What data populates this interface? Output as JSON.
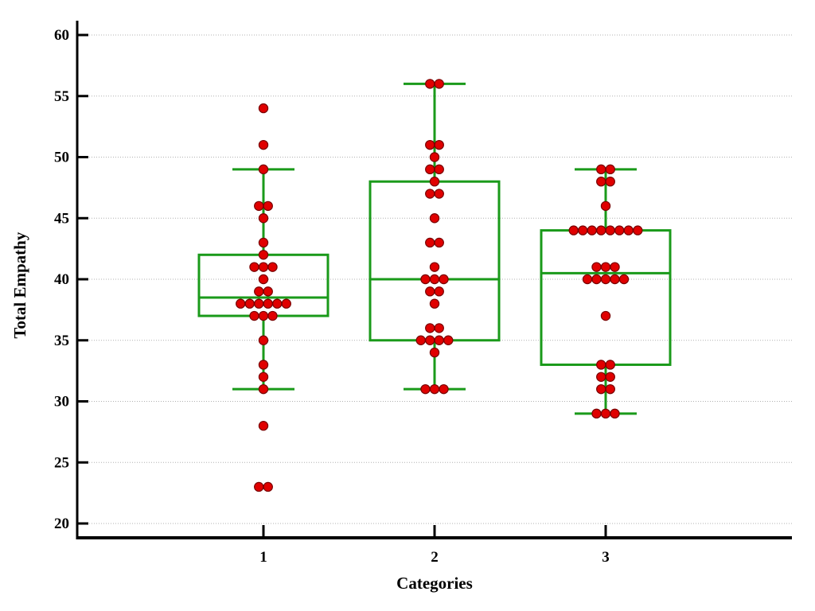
{
  "chart_data": {
    "type": "box",
    "title": "",
    "xlabel": "Categories",
    "ylabel": "Total Empathy",
    "categories": [
      "1",
      "2",
      "3"
    ],
    "ylim": [
      20,
      60
    ],
    "yticks": [
      20,
      25,
      30,
      35,
      40,
      45,
      50,
      55,
      60
    ],
    "grid": true,
    "colors": {
      "box": "#1a9a1a",
      "point_fill": "#e00000",
      "point_stroke": "#7a0000",
      "grid": "#b0b0b0",
      "axis": "#000000"
    },
    "boxes": [
      {
        "category": "1",
        "whisker_low": 31,
        "q1": 37,
        "median": 38.5,
        "q3": 42,
        "whisker_high": 49
      },
      {
        "category": "2",
        "whisker_low": 31,
        "q1": 35,
        "median": 40,
        "q3": 48,
        "whisker_high": 56
      },
      {
        "category": "3",
        "whisker_low": 29,
        "q1": 33,
        "median": 40.5,
        "q3": 44,
        "whisker_high": 49
      }
    ],
    "points": [
      [
        23,
        23,
        28,
        31,
        32,
        33,
        35,
        37,
        37,
        37,
        38,
        38,
        38,
        38,
        38,
        38,
        39,
        39,
        40,
        41,
        41,
        41,
        42,
        43,
        45,
        46,
        46,
        49,
        51,
        54
      ],
      [
        31,
        31,
        31,
        34,
        35,
        35,
        35,
        35,
        36,
        36,
        38,
        39,
        39,
        40,
        40,
        40,
        41,
        43,
        43,
        45,
        47,
        47,
        48,
        49,
        49,
        50,
        51,
        51,
        56,
        56
      ],
      [
        29,
        29,
        29,
        31,
        31,
        32,
        32,
        33,
        33,
        37,
        40,
        40,
        40,
        40,
        40,
        41,
        41,
        41,
        44,
        44,
        44,
        44,
        44,
        44,
        44,
        44,
        46,
        48,
        48,
        49,
        49
      ]
    ]
  }
}
